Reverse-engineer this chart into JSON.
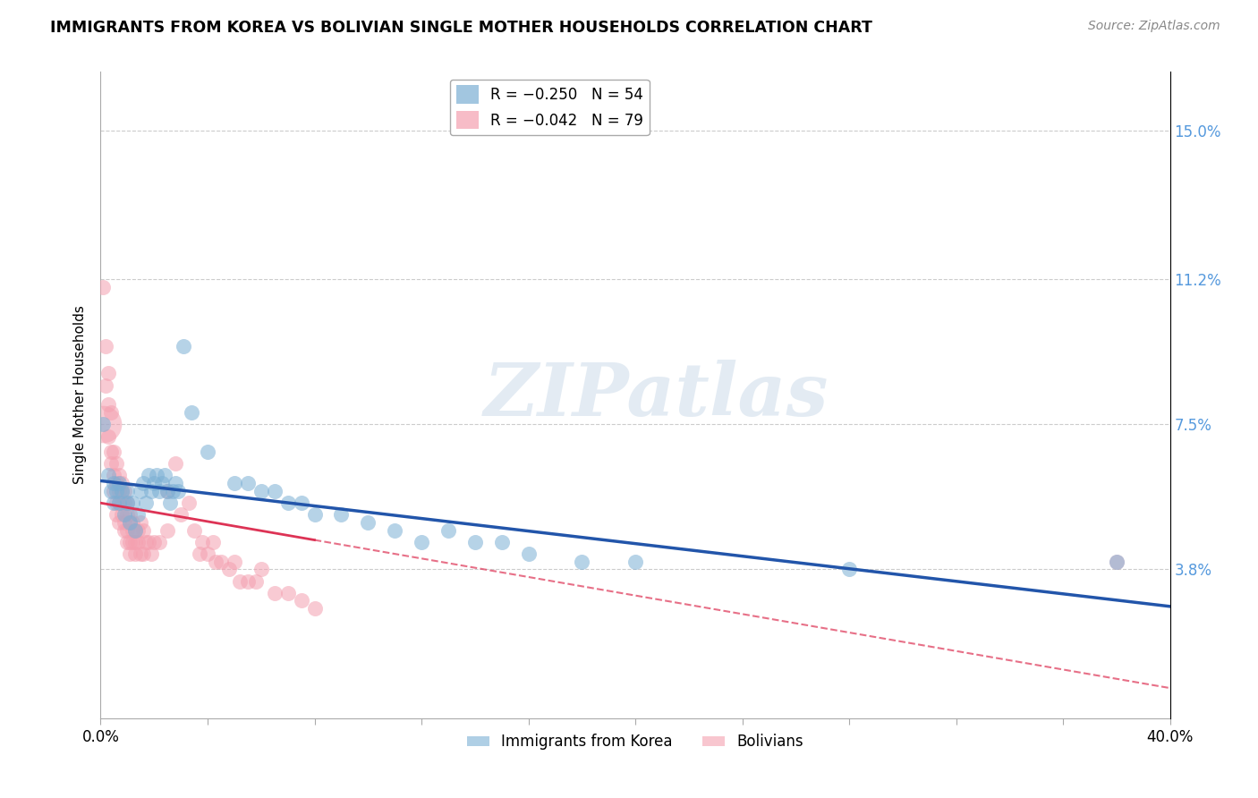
{
  "title": "IMMIGRANTS FROM KOREA VS BOLIVIAN SINGLE MOTHER HOUSEHOLDS CORRELATION CHART",
  "source": "Source: ZipAtlas.com",
  "ylabel": "Single Mother Households",
  "ytick_labels": [
    "3.8%",
    "7.5%",
    "11.2%",
    "15.0%"
  ],
  "ytick_values": [
    0.038,
    0.075,
    0.112,
    0.15
  ],
  "xlim": [
    0.0,
    0.4
  ],
  "ylim": [
    0.0,
    0.165
  ],
  "korea_color": "#7BAFD4",
  "bolivia_color": "#F4A0B0",
  "trendline_korea_color": "#2255AA",
  "trendline_bolivia_color": "#DD3355",
  "watermark": "ZIPatlas",
  "korea_R": -0.25,
  "bolivia_R": -0.042,
  "korea_points": [
    [
      0.001,
      0.075
    ],
    [
      0.003,
      0.062
    ],
    [
      0.004,
      0.058
    ],
    [
      0.005,
      0.06
    ],
    [
      0.005,
      0.055
    ],
    [
      0.006,
      0.058
    ],
    [
      0.007,
      0.055
    ],
    [
      0.007,
      0.06
    ],
    [
      0.008,
      0.058
    ],
    [
      0.009,
      0.052
    ],
    [
      0.01,
      0.058
    ],
    [
      0.01,
      0.055
    ],
    [
      0.011,
      0.05
    ],
    [
      0.012,
      0.055
    ],
    [
      0.013,
      0.048
    ],
    [
      0.014,
      0.052
    ],
    [
      0.015,
      0.058
    ],
    [
      0.016,
      0.06
    ],
    [
      0.017,
      0.055
    ],
    [
      0.018,
      0.062
    ],
    [
      0.019,
      0.058
    ],
    [
      0.02,
      0.06
    ],
    [
      0.021,
      0.062
    ],
    [
      0.022,
      0.058
    ],
    [
      0.023,
      0.06
    ],
    [
      0.024,
      0.062
    ],
    [
      0.025,
      0.058
    ],
    [
      0.026,
      0.055
    ],
    [
      0.027,
      0.058
    ],
    [
      0.028,
      0.06
    ],
    [
      0.029,
      0.058
    ],
    [
      0.031,
      0.095
    ],
    [
      0.034,
      0.078
    ],
    [
      0.04,
      0.068
    ],
    [
      0.05,
      0.06
    ],
    [
      0.055,
      0.06
    ],
    [
      0.06,
      0.058
    ],
    [
      0.065,
      0.058
    ],
    [
      0.07,
      0.055
    ],
    [
      0.075,
      0.055
    ],
    [
      0.08,
      0.052
    ],
    [
      0.09,
      0.052
    ],
    [
      0.1,
      0.05
    ],
    [
      0.11,
      0.048
    ],
    [
      0.12,
      0.045
    ],
    [
      0.13,
      0.048
    ],
    [
      0.14,
      0.045
    ],
    [
      0.15,
      0.045
    ],
    [
      0.16,
      0.042
    ],
    [
      0.18,
      0.04
    ],
    [
      0.2,
      0.04
    ],
    [
      0.28,
      0.038
    ],
    [
      0.38,
      0.04
    ]
  ],
  "bolivia_points": [
    [
      0.001,
      0.11
    ],
    [
      0.002,
      0.095
    ],
    [
      0.002,
      0.085
    ],
    [
      0.003,
      0.088
    ],
    [
      0.003,
      0.08
    ],
    [
      0.003,
      0.072
    ],
    [
      0.004,
      0.078
    ],
    [
      0.004,
      0.068
    ],
    [
      0.004,
      0.065
    ],
    [
      0.005,
      0.068
    ],
    [
      0.005,
      0.062
    ],
    [
      0.005,
      0.058
    ],
    [
      0.006,
      0.065
    ],
    [
      0.006,
      0.06
    ],
    [
      0.006,
      0.055
    ],
    [
      0.006,
      0.052
    ],
    [
      0.007,
      0.062
    ],
    [
      0.007,
      0.058
    ],
    [
      0.007,
      0.055
    ],
    [
      0.007,
      0.05
    ],
    [
      0.008,
      0.06
    ],
    [
      0.008,
      0.058
    ],
    [
      0.008,
      0.055
    ],
    [
      0.008,
      0.052
    ],
    [
      0.009,
      0.058
    ],
    [
      0.009,
      0.055
    ],
    [
      0.009,
      0.05
    ],
    [
      0.009,
      0.048
    ],
    [
      0.01,
      0.055
    ],
    [
      0.01,
      0.052
    ],
    [
      0.01,
      0.048
    ],
    [
      0.01,
      0.045
    ],
    [
      0.011,
      0.052
    ],
    [
      0.011,
      0.05
    ],
    [
      0.011,
      0.045
    ],
    [
      0.011,
      0.042
    ],
    [
      0.012,
      0.05
    ],
    [
      0.012,
      0.048
    ],
    [
      0.012,
      0.045
    ],
    [
      0.013,
      0.048
    ],
    [
      0.013,
      0.045
    ],
    [
      0.013,
      0.042
    ],
    [
      0.014,
      0.048
    ],
    [
      0.014,
      0.045
    ],
    [
      0.015,
      0.05
    ],
    [
      0.015,
      0.042
    ],
    [
      0.016,
      0.048
    ],
    [
      0.016,
      0.042
    ],
    [
      0.017,
      0.045
    ],
    [
      0.018,
      0.045
    ],
    [
      0.019,
      0.042
    ],
    [
      0.02,
      0.045
    ],
    [
      0.022,
      0.045
    ],
    [
      0.025,
      0.058
    ],
    [
      0.025,
      0.048
    ],
    [
      0.028,
      0.065
    ],
    [
      0.03,
      0.052
    ],
    [
      0.033,
      0.055
    ],
    [
      0.035,
      0.048
    ],
    [
      0.037,
      0.042
    ],
    [
      0.038,
      0.045
    ],
    [
      0.04,
      0.042
    ],
    [
      0.042,
      0.045
    ],
    [
      0.043,
      0.04
    ],
    [
      0.045,
      0.04
    ],
    [
      0.048,
      0.038
    ],
    [
      0.05,
      0.04
    ],
    [
      0.052,
      0.035
    ],
    [
      0.055,
      0.035
    ],
    [
      0.058,
      0.035
    ],
    [
      0.06,
      0.038
    ],
    [
      0.065,
      0.032
    ],
    [
      0.07,
      0.032
    ],
    [
      0.075,
      0.03
    ],
    [
      0.08,
      0.028
    ],
    [
      0.38,
      0.04
    ]
  ]
}
